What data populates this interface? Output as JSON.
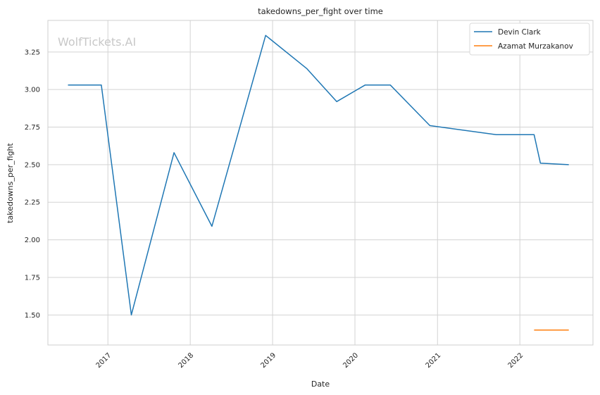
{
  "chart_data": {
    "type": "line",
    "title": "takedowns_per_fight over time",
    "xlabel": "Date",
    "ylabel": "takedowns_per_fight",
    "watermark": "WolfTickets.AI",
    "x_axis": {
      "type": "date",
      "range": [
        "2016-04-10",
        "2022-11-21"
      ],
      "ticks": [
        "2017-01-01",
        "2018-01-01",
        "2019-01-01",
        "2020-01-01",
        "2021-01-01",
        "2022-01-01"
      ],
      "tick_labels": [
        "2017",
        "2018",
        "2019",
        "2020",
        "2021",
        "2022"
      ],
      "tick_label_rotation": -45
    },
    "y_axis": {
      "range": [
        1.3,
        3.46
      ],
      "ticks": [
        1.5,
        1.75,
        2.0,
        2.25,
        2.5,
        2.75,
        3.0,
        3.25
      ],
      "tick_labels": [
        "1.50",
        "1.75",
        "2.00",
        "2.25",
        "2.50",
        "2.75",
        "3.00",
        "3.25"
      ]
    },
    "grid": true,
    "legend": {
      "placement": "top-right"
    },
    "series": [
      {
        "name": "Devin Clark",
        "color": "#1f77b4",
        "points": [
          {
            "x": "2016-07-08",
            "y": 3.03
          },
          {
            "x": "2016-12-03",
            "y": 3.03
          },
          {
            "x": "2017-04-15",
            "y": 1.5
          },
          {
            "x": "2017-10-21",
            "y": 2.58
          },
          {
            "x": "2018-04-07",
            "y": 2.09
          },
          {
            "x": "2018-12-01",
            "y": 3.36
          },
          {
            "x": "2019-06-01",
            "y": 3.14
          },
          {
            "x": "2019-10-12",
            "y": 2.92
          },
          {
            "x": "2020-02-15",
            "y": 3.03
          },
          {
            "x": "2020-06-06",
            "y": 3.03
          },
          {
            "x": "2020-11-28",
            "y": 2.76
          },
          {
            "x": "2021-09-18",
            "y": 2.7
          },
          {
            "x": "2022-03-05",
            "y": 2.7
          },
          {
            "x": "2022-04-02",
            "y": 2.51
          },
          {
            "x": "2022-08-06",
            "y": 2.5
          }
        ]
      },
      {
        "name": "Azamat Murzakanov",
        "color": "#ff7f0e",
        "points": [
          {
            "x": "2022-03-05",
            "y": 1.4
          },
          {
            "x": "2022-08-06",
            "y": 1.4
          }
        ]
      }
    ]
  }
}
